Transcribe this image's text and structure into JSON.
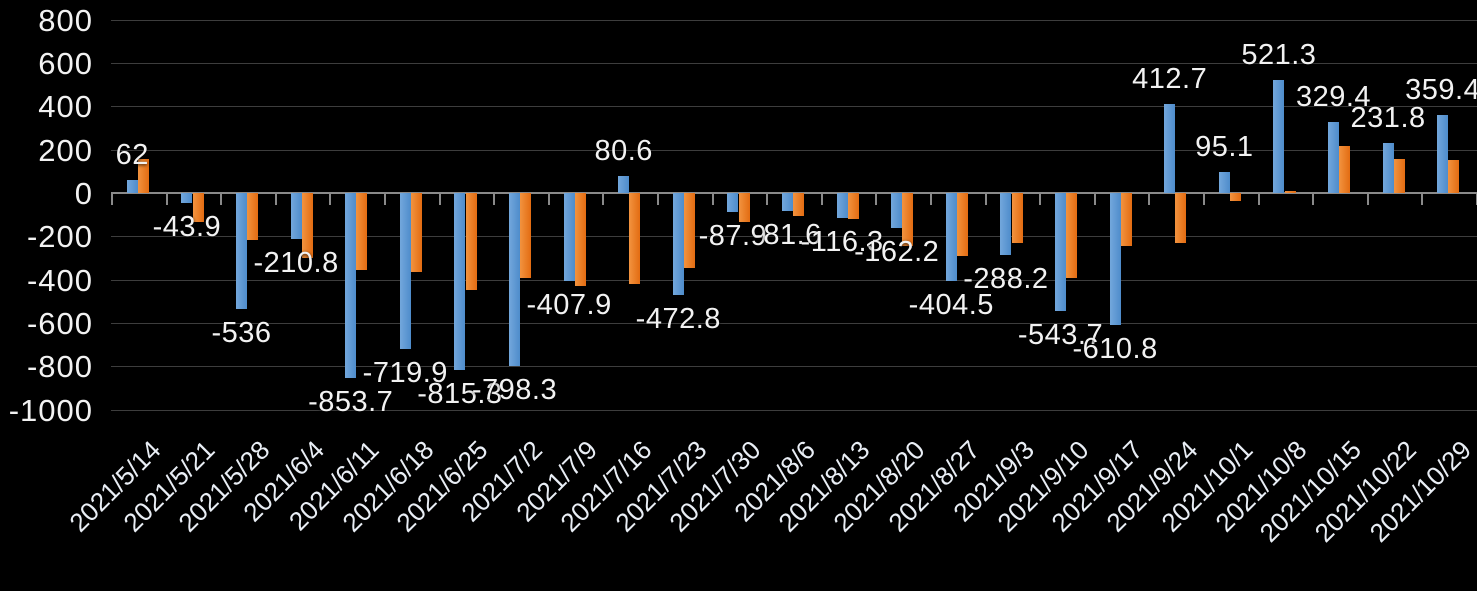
{
  "chart_data": {
    "type": "bar",
    "title": "",
    "legend": "none",
    "grid": true,
    "background": "#000000",
    "gridline_color": "#3D3D3D",
    "axis_line_color": "#8A8A8A",
    "label_color": "#F2F2F2",
    "x_label_color": "#E9EEF5",
    "categories": [
      "2021/5/14",
      "2021/5/21",
      "2021/5/28",
      "2021/6/4",
      "2021/6/11",
      "2021/6/18",
      "2021/6/25",
      "2021/7/2",
      "2021/7/9",
      "2021/7/16",
      "2021/7/23",
      "2021/7/30",
      "2021/8/6",
      "2021/8/13",
      "2021/8/20",
      "2021/8/27",
      "2021/9/3",
      "2021/9/10",
      "2021/9/17",
      "2021/9/24",
      "2021/10/1",
      "2021/10/8",
      "2021/10/15",
      "2021/10/22",
      "2021/10/29"
    ],
    "series": [
      {
        "name": "series-1-blue",
        "color": "#5B9BD5",
        "color_gradient": [
          "#73A7DC",
          "#4E8CCB"
        ],
        "values": [
          62,
          -43.9,
          -536,
          -210.8,
          -853.7,
          -719.9,
          -815.3,
          -798.3,
          -407.9,
          80.6,
          -472.8,
          -87.9,
          -81.6,
          -116.3,
          -162.2,
          -404.5,
          -288.2,
          -543.7,
          -610.8,
          412.7,
          95.1,
          521.3,
          329.4,
          231.8,
          359.4
        ],
        "labels": [
          "62",
          "-43.9",
          "-536",
          "-210.8",
          "-853.7",
          "-719.9",
          "-815.3",
          "-798.3",
          "-407.9",
          "80.6",
          "-472.8",
          "-87.9",
          "-81.6",
          "-116.3",
          "-162.2",
          "-404.5",
          "-288.2",
          "-543.7",
          "-610.8",
          "412.7",
          "95.1",
          "521.3",
          "329.4",
          "231.8",
          "359.4"
        ]
      },
      {
        "name": "series-2-orange",
        "color": "#ED7D31",
        "color_gradient": [
          "#F2933F",
          "#E36C12"
        ],
        "values": [
          158,
          -134,
          -215,
          -300,
          -357,
          -365,
          -450,
          -393,
          -430,
          -420,
          -345,
          -134,
          -108,
          -121,
          -244,
          -291,
          -230,
          -394,
          -245,
          -230,
          -37,
          9,
          218,
          156,
          152
        ]
      }
    ],
    "y_axis": {
      "min": -1000,
      "max": 800,
      "step": 200,
      "tick_labels": [
        "800",
        "600",
        "400",
        "200",
        "0",
        "-200",
        "-400",
        "-600",
        "-800",
        "-1000"
      ]
    }
  }
}
